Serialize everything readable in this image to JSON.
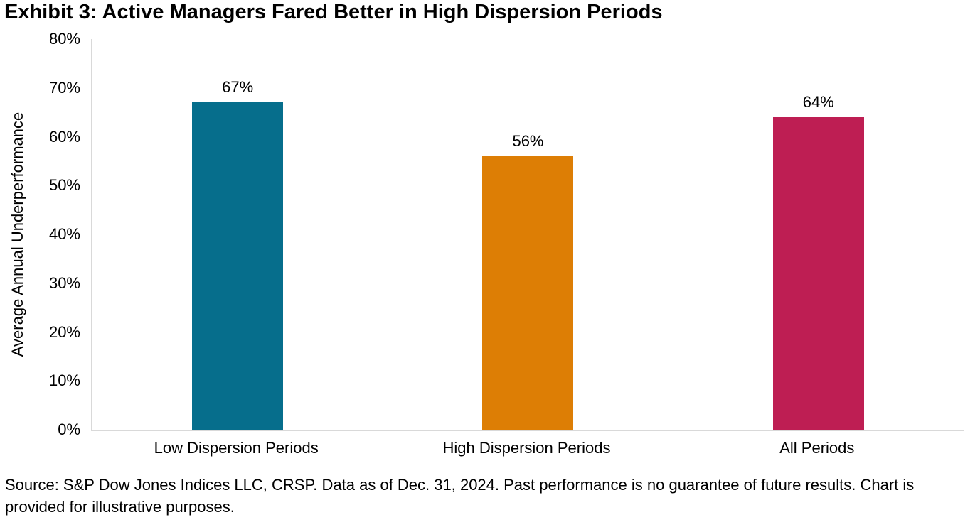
{
  "title": "Exhibit 3: Active Managers Fared Better in High Dispersion Periods",
  "source_note": "Source: S&P Dow Jones Indices LLC, CRSP. Data as of Dec. 31, 2024. Past performance is no guarantee of future results. Chart is provided for illustrative purposes.",
  "chart_data": {
    "type": "bar",
    "title": "Exhibit 3: Active Managers Fared Better in High Dispersion Periods",
    "categories": [
      "Low Dispersion Periods",
      "High Dispersion Periods",
      "All Periods"
    ],
    "values": [
      67,
      56,
      64
    ],
    "value_labels": [
      "67%",
      "56%",
      "64%"
    ],
    "bar_colors": [
      "#066e8c",
      "#dd7e05",
      "#be1e53"
    ],
    "xlabel": "",
    "ylabel": "Average Annual Underperformance",
    "ylim": [
      0,
      80
    ],
    "yticks": [
      0,
      10,
      20,
      30,
      40,
      50,
      60,
      70,
      80
    ],
    "ytick_labels": [
      "0%",
      "10%",
      "20%",
      "30%",
      "40%",
      "50%",
      "60%",
      "70%",
      "80%"
    ],
    "grid": false,
    "legend": "none",
    "axis_color": "#d9d9d9",
    "text_color": "#000000"
  }
}
